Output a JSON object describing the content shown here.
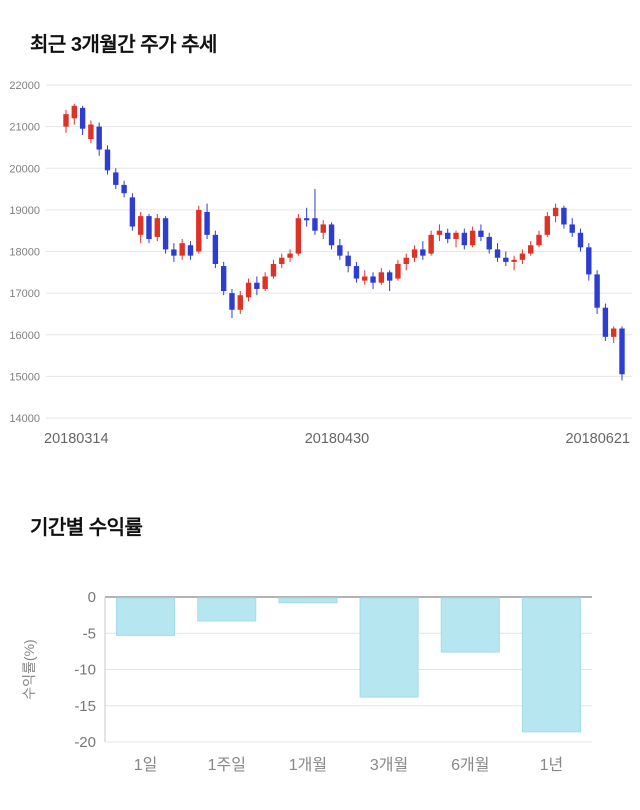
{
  "price_section": {
    "title": "최근 3개월간 주가 추세"
  },
  "returns_section": {
    "title": "기간별 수익률"
  },
  "chart_data": [
    {
      "type": "candlestick",
      "title": "최근 3개월간 주가 추세",
      "ylim": [
        14000,
        22000
      ],
      "yticks": [
        22000,
        21000,
        20000,
        19000,
        18000,
        17000,
        16000,
        15000,
        14000
      ],
      "x_labels": [
        "20180314",
        "20180430",
        "20180621"
      ],
      "up_color": "#dd3327",
      "down_color": "#2d3dd1",
      "grid": true,
      "candles": [
        [
          21000,
          21400,
          20850,
          21300
        ],
        [
          21200,
          21550,
          21050,
          21500
        ],
        [
          21450,
          21500,
          20800,
          20950
        ],
        [
          20700,
          21150,
          20600,
          21050
        ],
        [
          21000,
          21100,
          20300,
          20450
        ],
        [
          20450,
          20550,
          19850,
          19950
        ],
        [
          19900,
          20000,
          19500,
          19600
        ],
        [
          19600,
          19700,
          19300,
          19400
        ],
        [
          19300,
          19400,
          18500,
          18600
        ],
        [
          18400,
          18950,
          18200,
          18850
        ],
        [
          18850,
          18900,
          18200,
          18300
        ],
        [
          18350,
          18900,
          18250,
          18800
        ],
        [
          18800,
          18850,
          17950,
          18050
        ],
        [
          18050,
          18200,
          17750,
          17900
        ],
        [
          17900,
          18300,
          17800,
          18200
        ],
        [
          18150,
          18250,
          17800,
          17900
        ],
        [
          18000,
          19100,
          17950,
          19000
        ],
        [
          18950,
          19150,
          18300,
          18400
        ],
        [
          18400,
          18500,
          17600,
          17700
        ],
        [
          17650,
          17750,
          16950,
          17050
        ],
        [
          17000,
          17100,
          16400,
          16600
        ],
        [
          16600,
          17050,
          16500,
          16950
        ],
        [
          16900,
          17350,
          16800,
          17250
        ],
        [
          17250,
          17400,
          16950,
          17100
        ],
        [
          17100,
          17500,
          17050,
          17400
        ],
        [
          17400,
          17800,
          17350,
          17700
        ],
        [
          17700,
          17950,
          17600,
          17850
        ],
        [
          17850,
          18050,
          17750,
          17950
        ],
        [
          17950,
          18900,
          17900,
          18800
        ],
        [
          18800,
          19050,
          18600,
          18750
        ],
        [
          18800,
          19500,
          18400,
          18500
        ],
        [
          18450,
          18750,
          18300,
          18650
        ],
        [
          18650,
          18700,
          18050,
          18150
        ],
        [
          18150,
          18300,
          17800,
          17900
        ],
        [
          17900,
          18000,
          17500,
          17650
        ],
        [
          17650,
          17750,
          17250,
          17350
        ],
        [
          17300,
          17550,
          17200,
          17400
        ],
        [
          17400,
          17500,
          17100,
          17250
        ],
        [
          17250,
          17600,
          17200,
          17500
        ],
        [
          17500,
          17550,
          17050,
          17300
        ],
        [
          17350,
          17800,
          17300,
          17700
        ],
        [
          17700,
          17950,
          17550,
          17850
        ],
        [
          17850,
          18150,
          17750,
          18050
        ],
        [
          18050,
          18250,
          17800,
          17900
        ],
        [
          17950,
          18500,
          17900,
          18400
        ],
        [
          18400,
          18650,
          18250,
          18500
        ],
        [
          18450,
          18550,
          18200,
          18300
        ],
        [
          18300,
          18500,
          18100,
          18450
        ],
        [
          18450,
          18550,
          18050,
          18150
        ],
        [
          18150,
          18600,
          18100,
          18500
        ],
        [
          18500,
          18650,
          18250,
          18350
        ],
        [
          18350,
          18450,
          17950,
          18050
        ],
        [
          18050,
          18200,
          17750,
          17850
        ],
        [
          17850,
          18000,
          17650,
          17750
        ],
        [
          17750,
          17900,
          17550,
          17800
        ],
        [
          17800,
          18050,
          17700,
          17950
        ],
        [
          17950,
          18250,
          17900,
          18150
        ],
        [
          18150,
          18500,
          18100,
          18400
        ],
        [
          18400,
          18950,
          18350,
          18850
        ],
        [
          18850,
          19150,
          18700,
          19050
        ],
        [
          19050,
          19100,
          18550,
          18650
        ],
        [
          18650,
          18800,
          18350,
          18450
        ],
        [
          18450,
          18550,
          18000,
          18100
        ],
        [
          18100,
          18200,
          17300,
          17450
        ],
        [
          17450,
          17550,
          16500,
          16650
        ],
        [
          16650,
          16750,
          15850,
          15950
        ],
        [
          15950,
          16200,
          15800,
          16150
        ],
        [
          16150,
          16200,
          14900,
          15050
        ]
      ]
    },
    {
      "type": "bar",
      "title": "기간별 수익률",
      "categories": [
        "1일",
        "1주일",
        "1개월",
        "3개월",
        "6개월",
        "1년"
      ],
      "values": [
        -5.3,
        -3.3,
        -0.8,
        -13.8,
        -7.6,
        -18.6
      ],
      "xlabel": "",
      "ylabel": "수익률(%)",
      "ylim": [
        -20,
        0
      ],
      "yticks": [
        0,
        -5,
        -10,
        -15,
        -20
      ],
      "bar_color": "#b6e6f0",
      "bar_border_color": "#a3dbe8",
      "grid": true,
      "legend": "none"
    }
  ]
}
